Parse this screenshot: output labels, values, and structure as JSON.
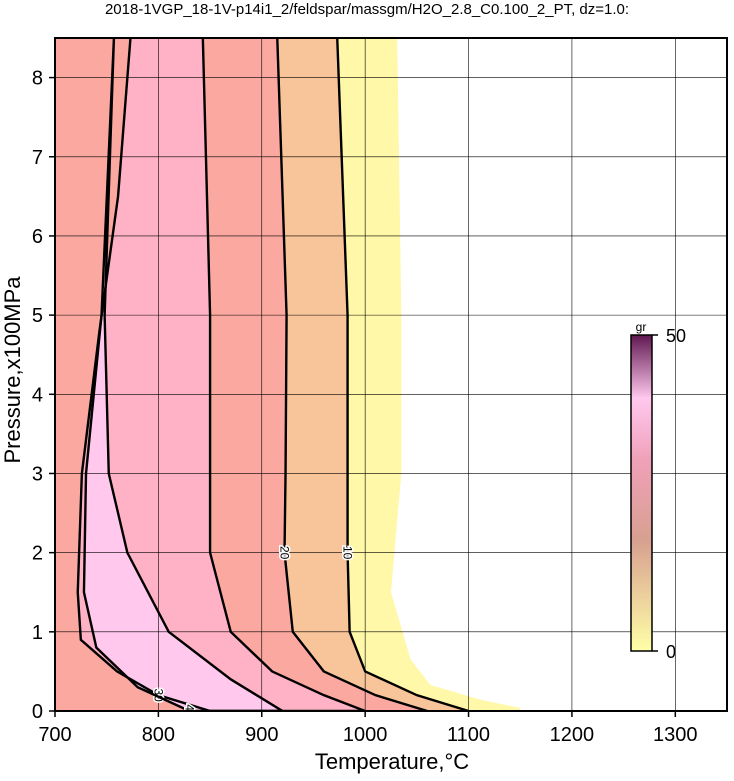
{
  "chart_data": {
    "type": "contour",
    "title": "2018-1VGP_18-1V-p14i1_2/feldspar/massgm/H2O_2.8_C0.100_2_PT, dz=1.0:",
    "x_label": "Temperature,°C",
    "y_label": "Pressure,x100MPa",
    "xlim": [
      700,
      1350
    ],
    "ylim": [
      0,
      8.5
    ],
    "xticks": [
      700,
      800,
      900,
      1000,
      1100,
      1200,
      1300
    ],
    "yticks": [
      0,
      1,
      2,
      3,
      4,
      5,
      6,
      7,
      8
    ],
    "grid": true,
    "colorbar": {
      "label": "gr",
      "lim": [
        0,
        50
      ],
      "ticks": [
        0,
        50
      ]
    },
    "contours": [
      {
        "level": 0,
        "color": "#fff8a8",
        "closed": false,
        "x": [
          1031,
          1035,
          1035,
          1025,
          1044,
          1063,
          1112,
          1150,
          1150
        ],
        "y": [
          8.5,
          5,
          3,
          1.5,
          0.65,
          0.33,
          0.14,
          0.04,
          0
        ]
      },
      {
        "level": 10,
        "color": "#f8c49a",
        "closed": false,
        "x": [
          973,
          983,
          983,
          983,
          985,
          1000,
          1050,
          1100
        ],
        "y": [
          8.5,
          5,
          3,
          2,
          1,
          0.5,
          0.2,
          0
        ]
      },
      {
        "level": 20,
        "color": "#fba8a0",
        "closed": false,
        "x": [
          915,
          924,
          923,
          922,
          930,
          960,
          1010,
          1060
        ],
        "y": [
          8.5,
          5,
          3,
          2,
          1,
          0.5,
          0.2,
          0
        ]
      },
      {
        "level": 30,
        "color": "#ffb2c6",
        "closed": true,
        "x": [
          773,
          761,
          743,
          726,
          722,
          725,
          760,
          800,
          850,
          1000,
          960,
          910,
          870,
          850,
          850,
          843
        ],
        "y": [
          8.5,
          6.5,
          4.8,
          3,
          1.5,
          0.9,
          0.5,
          0.2,
          0,
          0,
          0.2,
          0.5,
          1,
          2,
          5,
          8.5
        ]
      },
      {
        "level": 40,
        "color": "#ffc8ec",
        "closed": true,
        "x": [
          757,
          745,
          730,
          728,
          740,
          780,
          830,
          920,
          870,
          810,
          770,
          752,
          748,
          757
        ],
        "y": [
          8.5,
          5,
          3,
          1.5,
          0.8,
          0.3,
          0,
          0,
          0.4,
          1,
          2,
          3,
          5,
          8.5
        ]
      }
    ]
  }
}
